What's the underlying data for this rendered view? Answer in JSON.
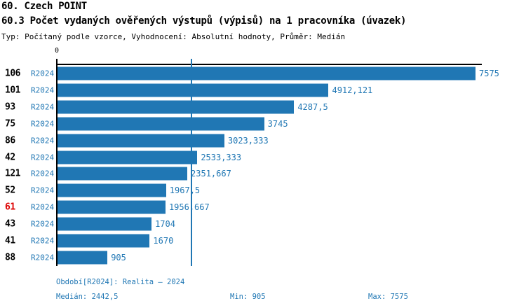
{
  "header": {
    "title": "60. Czech POINT",
    "subtitle": "60.3 Počet vydaných ověřených výstupů (výpisů) na 1 pracovníka (úvazek)",
    "meta": "Typ: Počítaný podle vzorce, Vyhodnocení: Absolutní hodnoty, Průměr: Medián"
  },
  "chart_data": {
    "type": "bar",
    "orientation": "horizontal",
    "xlim": [
      0,
      7575
    ],
    "x_axis_tick_labels": [
      "0"
    ],
    "grid": false,
    "median_line_value": 2442.5,
    "series_label": "R2024",
    "categories": [
      "106",
      "101",
      "93",
      "75",
      "86",
      "42",
      "121",
      "52",
      "61",
      "43",
      "41",
      "88"
    ],
    "values": [
      7575,
      4912.121,
      4287.5,
      3745,
      3023.333,
      2533.333,
      2351.667,
      1967.5,
      1956.667,
      1704,
      1670,
      905
    ],
    "value_labels": [
      "7575",
      "4912,121",
      "4287,5",
      "3745",
      "3023,333",
      "2533,333",
      "2351,667",
      "1967,5",
      "1956,667",
      "1704",
      "1670",
      "905"
    ],
    "highlighted_category": "61"
  },
  "footer": {
    "period": "Období[R2024]: Realita – 2024",
    "median": "Medián: 2442,5",
    "min": "Min: 905",
    "max": "Max: 7575"
  },
  "colors": {
    "bar": "#2077b4",
    "blue_text": "#2077b4",
    "highlight_text": "#dd0000",
    "axis": "#000000"
  }
}
